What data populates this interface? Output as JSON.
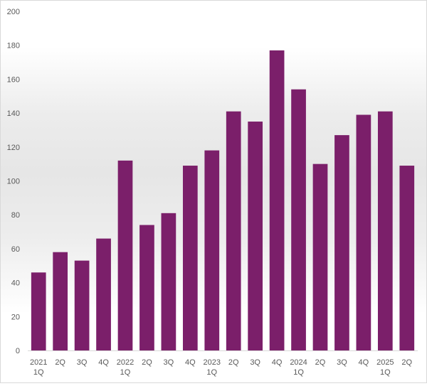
{
  "chart_data": {
    "type": "bar",
    "categories": [
      [
        "2021",
        "1Q"
      ],
      [
        "2Q"
      ],
      [
        "3Q"
      ],
      [
        "4Q"
      ],
      [
        "2022",
        "1Q"
      ],
      [
        "2Q"
      ],
      [
        "3Q"
      ],
      [
        "4Q"
      ],
      [
        "2023",
        "1Q"
      ],
      [
        "2Q"
      ],
      [
        "3Q"
      ],
      [
        "4Q"
      ],
      [
        "2024",
        "1Q"
      ],
      [
        "2Q"
      ],
      [
        "3Q"
      ],
      [
        "4Q"
      ],
      [
        "2025",
        "1Q"
      ],
      [
        "2Q"
      ]
    ],
    "values": [
      46,
      58,
      53,
      66,
      112,
      74,
      81,
      109,
      118,
      141,
      135,
      177,
      154,
      110,
      127,
      139,
      141,
      109
    ],
    "ylim": [
      0,
      200
    ],
    "yticks": [
      0,
      20,
      40,
      60,
      80,
      100,
      120,
      140,
      160,
      180,
      200
    ],
    "title": "",
    "xlabel": "",
    "ylabel": "",
    "grid": false,
    "legend": "none",
    "colors": {
      "bar": "#7b1f6a",
      "axis": "#d9d9d9",
      "text": "#595959"
    }
  }
}
